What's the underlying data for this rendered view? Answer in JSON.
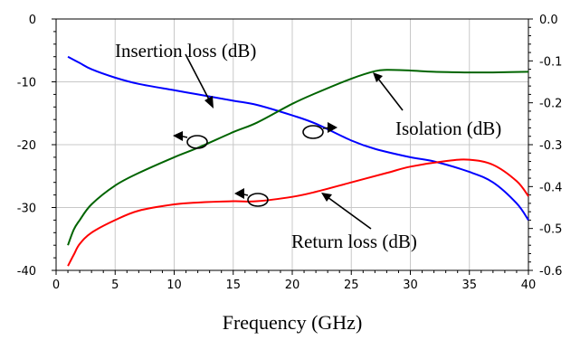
{
  "chart_data": {
    "type": "line",
    "xlabel": "Frequency (GHz)",
    "xlim": [
      0,
      40
    ],
    "ylim_left": [
      -40,
      0
    ],
    "ylim_right": [
      -0.6,
      0.0
    ],
    "x_ticks": [
      "0",
      "5",
      "10",
      "15",
      "20",
      "25",
      "30",
      "35",
      "40"
    ],
    "y_left_ticks": [
      "0",
      "-10",
      "-20",
      "-30",
      "-40"
    ],
    "y_right_ticks": [
      "0.0",
      "-0.1",
      "-0.2",
      "-0.3",
      "-0.4",
      "-0.5",
      "-0.6"
    ],
    "grid": true,
    "series": [
      {
        "name": "Insertion loss (dB)",
        "axis": "right",
        "color": "#0000ff",
        "x": [
          1,
          2,
          3,
          5,
          7,
          10,
          12,
          15,
          17,
          20,
          22,
          25,
          27,
          30,
          32,
          35,
          37,
          39,
          40
        ],
        "values": [
          -0.09,
          -0.105,
          -0.12,
          -0.14,
          -0.155,
          -0.17,
          -0.18,
          -0.195,
          -0.205,
          -0.23,
          -0.25,
          -0.29,
          -0.31,
          -0.33,
          -0.34,
          -0.365,
          -0.39,
          -0.44,
          -0.48
        ]
      },
      {
        "name": "Isolation (dB)",
        "axis": "left",
        "color": "#006400",
        "x": [
          1,
          1.5,
          2,
          3,
          5,
          7,
          10,
          12,
          15,
          17,
          20,
          22,
          25,
          27,
          28,
          30,
          32,
          35,
          37,
          40
        ],
        "values": [
          -36,
          -33.5,
          -32,
          -29.5,
          -26.5,
          -24.5,
          -22,
          -20.5,
          -18,
          -16.5,
          -13.5,
          -11.8,
          -9.5,
          -8.3,
          -8.1,
          -8.2,
          -8.4,
          -8.5,
          -8.5,
          -8.4
        ]
      },
      {
        "name": "Return loss (dB)",
        "axis": "left",
        "color": "#ff0000",
        "x": [
          1,
          1.5,
          2,
          3,
          5,
          7,
          10,
          12,
          15,
          17,
          20,
          22,
          25,
          28,
          30,
          33,
          35,
          37,
          39,
          40
        ],
        "values": [
          -39.3,
          -37.5,
          -35.8,
          -34,
          -32,
          -30.5,
          -29.5,
          -29.2,
          -29,
          -29,
          -28.3,
          -27.5,
          -26,
          -24.5,
          -23.5,
          -22.6,
          -22.4,
          -23.2,
          -25.8,
          -28.2
        ]
      }
    ],
    "annotations": [
      "Insertion loss (dB)",
      "Isolation (dB)",
      "Return loss (dB)"
    ]
  }
}
